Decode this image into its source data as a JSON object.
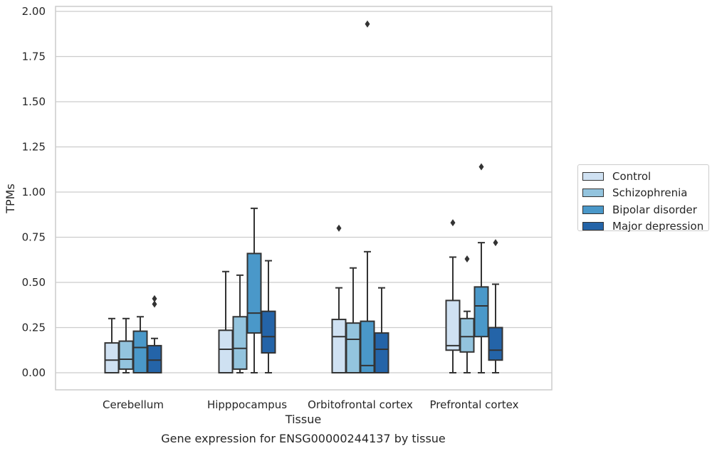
{
  "chart_data": {
    "type": "boxplot",
    "caption": "Gene expression for ENSG00000244137 by tissue",
    "xlabel": "Tissue",
    "ylabel": "TPMs",
    "ylim": [
      -0.09,
      2.03
    ],
    "yticks": [
      "0.00",
      "0.25",
      "0.50",
      "0.75",
      "1.00",
      "1.25",
      "1.50",
      "1.75",
      "2.00"
    ],
    "grid": true,
    "legend_position": "right",
    "categories": [
      "Cerebellum",
      "Hipppocampus",
      "Orbitofrontal cortex",
      "Prefrontal cortex"
    ],
    "series": [
      {
        "name": "Control",
        "color": "#cfe1f2",
        "boxes": [
          {
            "whislo": 0.0,
            "q1": 0.0,
            "med": 0.07,
            "q3": 0.165,
            "whishi": 0.3,
            "fliers": []
          },
          {
            "whislo": 0.0,
            "q1": 0.0,
            "med": 0.13,
            "q3": 0.235,
            "whishi": 0.56,
            "fliers": []
          },
          {
            "whislo": 0.0,
            "q1": 0.0,
            "med": 0.2,
            "q3": 0.295,
            "whishi": 0.47,
            "fliers": [
              0.8
            ]
          },
          {
            "whislo": 0.0,
            "q1": 0.125,
            "med": 0.15,
            "q3": 0.4,
            "whishi": 0.64,
            "fliers": [
              0.83
            ]
          }
        ]
      },
      {
        "name": "Schizophrenia",
        "color": "#93c4de",
        "boxes": [
          {
            "whislo": 0.0,
            "q1": 0.02,
            "med": 0.075,
            "q3": 0.175,
            "whishi": 0.3,
            "fliers": []
          },
          {
            "whislo": 0.0,
            "q1": 0.02,
            "med": 0.135,
            "q3": 0.31,
            "whishi": 0.54,
            "fliers": []
          },
          {
            "whislo": 0.0,
            "q1": 0.0,
            "med": 0.185,
            "q3": 0.275,
            "whishi": 0.58,
            "fliers": []
          },
          {
            "whislo": 0.0,
            "q1": 0.115,
            "med": 0.2,
            "q3": 0.3,
            "whishi": 0.34,
            "fliers": [
              0.63
            ]
          }
        ]
      },
      {
        "name": "Bipolar disorder",
        "color": "#4a98c9",
        "boxes": [
          {
            "whislo": 0.0,
            "q1": 0.0,
            "med": 0.14,
            "q3": 0.23,
            "whishi": 0.31,
            "fliers": []
          },
          {
            "whislo": 0.0,
            "q1": 0.22,
            "med": 0.33,
            "q3": 0.66,
            "whishi": 0.91,
            "fliers": []
          },
          {
            "whislo": 0.0,
            "q1": 0.0,
            "med": 0.04,
            "q3": 0.285,
            "whishi": 0.67,
            "fliers": [
              1.93
            ]
          },
          {
            "whislo": 0.0,
            "q1": 0.2,
            "med": 0.37,
            "q3": 0.475,
            "whishi": 0.72,
            "fliers": [
              1.14
            ]
          }
        ]
      },
      {
        "name": "Major depression",
        "color": "#2464a8",
        "boxes": [
          {
            "whislo": 0.0,
            "q1": 0.0,
            "med": 0.07,
            "q3": 0.15,
            "whishi": 0.19,
            "fliers": [
              0.38,
              0.41
            ]
          },
          {
            "whislo": 0.0,
            "q1": 0.11,
            "med": 0.2,
            "q3": 0.34,
            "whishi": 0.62,
            "fliers": []
          },
          {
            "whislo": 0.0,
            "q1": 0.0,
            "med": 0.13,
            "q3": 0.22,
            "whishi": 0.47,
            "fliers": []
          },
          {
            "whislo": 0.0,
            "q1": 0.07,
            "med": 0.125,
            "q3": 0.25,
            "whishi": 0.49,
            "fliers": [
              0.72
            ]
          }
        ]
      }
    ]
  }
}
